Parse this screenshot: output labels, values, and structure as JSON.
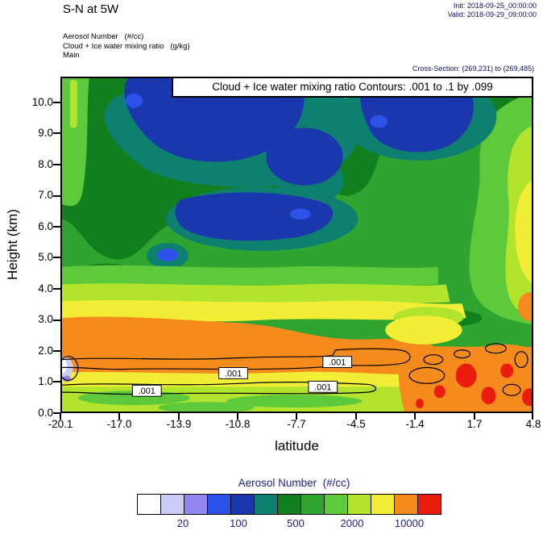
{
  "header": {
    "title": "S-N at 5W",
    "init_label": "Init: 2018-09-25_00:00:00",
    "valid_label": "Valid: 2018-09-29_09:00:00",
    "field1": "Aerosol Number   (#/cc)",
    "field2": "Cloud + Ice water mixing ratio   (g/kg)",
    "field3": "Main",
    "cross_section": "Cross-Section: (269,231) to (269,485)"
  },
  "plot": {
    "annotation": "Cloud + Ice water mixing ratio Contours: .001 to .1 by .099",
    "contour_label": ".001",
    "x_label": "latitude",
    "y_label": "Height (km)",
    "y_ticks": [
      "10.0",
      "9.0",
      "8.0",
      "7.0",
      "6.0",
      "5.0",
      "4.0",
      "3.0",
      "2.0",
      "1.0",
      "0.0"
    ],
    "x_ticks": [
      "-20.1",
      "-17.0",
      "-13.9",
      "-10.8",
      "-7.7",
      "-4.5",
      "-1.4",
      "1.7",
      "4.8"
    ]
  },
  "colorbar": {
    "title": "Aerosol Number  (#/cc)",
    "colors": [
      "#ffffff",
      "#ccccfa",
      "#9186ee",
      "#2a52e8",
      "#1b37ae",
      "#0e8070",
      "#127f1f",
      "#2fa42f",
      "#5ec93a",
      "#b2e42e",
      "#f2ee35",
      "#f58a1d",
      "#ea1c0e"
    ],
    "tick_labels": [
      "20",
      "100",
      "500",
      "2000",
      "10000"
    ]
  },
  "chart_data": {
    "type": "heatmap",
    "title": "S-N at 5W",
    "xlabel": "latitude",
    "ylabel": "Height (km)",
    "x_range": [
      -20.1,
      4.8
    ],
    "y_range": [
      0,
      10.8
    ],
    "x_ticks": [
      -20.1,
      -17.0,
      -13.9,
      -10.8,
      -7.7,
      -4.5,
      -1.4,
      1.7,
      4.8
    ],
    "y_ticks": [
      0,
      1,
      2,
      3,
      4,
      5,
      6,
      7,
      8,
      9,
      10
    ],
    "fill_variable": "Aerosol Number (#/cc)",
    "colorbar_labels": [
      20,
      100,
      500,
      2000,
      10000
    ],
    "colorbar_colors": [
      "#ffffff",
      "#ccccfa",
      "#9186ee",
      "#2a52e8",
      "#1b37ae",
      "#0e8070",
      "#127f1f",
      "#2fa42f",
      "#5ec93a",
      "#b2e42e",
      "#f2ee35",
      "#f58a1d",
      "#ea1c0e"
    ],
    "contour_variable": "Cloud + Ice water mixing ratio (g/kg)",
    "contour_levels": ".001 to .1 by .099",
    "contour_level_values": [
      0.001,
      0.1
    ],
    "cross_section": "(269,231) to (269,485)",
    "grid_note": "aerosol values (#/cc) estimated from fill colors at tick intersections, rows = heights_km, cols = latitudes",
    "heights_km": [
      0,
      1,
      2,
      3,
      4,
      5,
      6,
      7,
      8,
      9,
      10
    ],
    "latitudes": [
      -20.1,
      -17.0,
      -13.9,
      -10.8,
      -7.7,
      -4.5,
      -1.4,
      1.7,
      4.8
    ],
    "values": [
      [
        1500,
        1500,
        1500,
        1500,
        1500,
        3000,
        6000,
        7000,
        6000
      ],
      [
        1500,
        1500,
        1500,
        1500,
        2000,
        5000,
        7000,
        12000,
        8000
      ],
      [
        7000,
        7000,
        7000,
        7000,
        6000,
        4000,
        5000,
        8000,
        7000
      ],
      [
        6000,
        7000,
        7000,
        6000,
        5000,
        3000,
        3000,
        4000,
        6000
      ],
      [
        1500,
        1500,
        1500,
        1500,
        1500,
        2000,
        2500,
        3000,
        4000
      ],
      [
        1000,
        800,
        100,
        800,
        1000,
        1500,
        1500,
        2500,
        4000
      ],
      [
        800,
        1000,
        60,
        60,
        800,
        1000,
        1500,
        2000,
        3000
      ],
      [
        1000,
        800,
        300,
        60,
        500,
        800,
        1000,
        2000,
        3000
      ],
      [
        800,
        800,
        500,
        60,
        800,
        200,
        800,
        1500,
        3000
      ],
      [
        800,
        1000,
        60,
        200,
        1000,
        60,
        300,
        1500,
        3000
      ],
      [
        1000,
        800,
        100,
        60,
        800,
        60,
        100,
        1500,
        2500
      ]
    ]
  }
}
